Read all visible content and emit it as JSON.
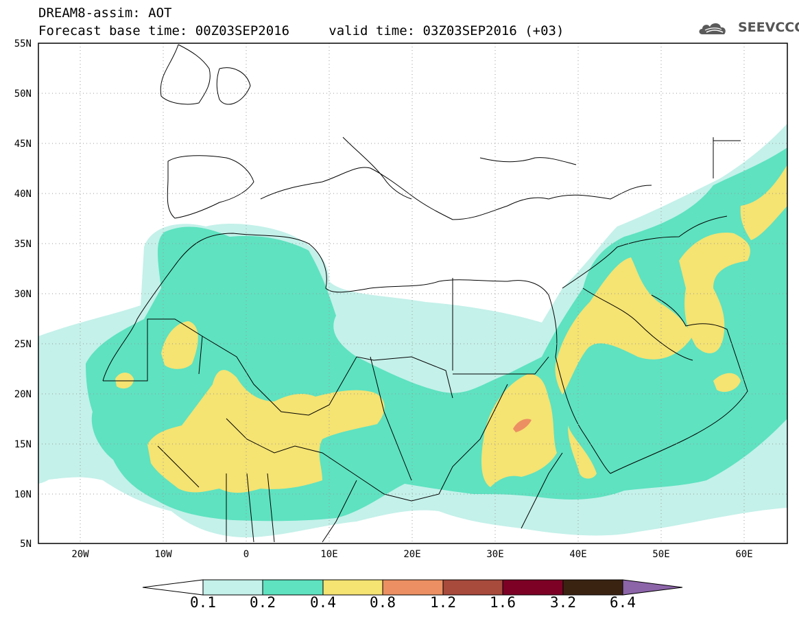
{
  "header": {
    "title": "DREAM8-assim: AOT",
    "base_time": "Forecast base time: 00Z03SEP2016",
    "valid_time": "valid time: 03Z03SEP2016 (+03)"
  },
  "brand": {
    "name": "SEEVCCC",
    "icon": "cloud-logo-icon"
  },
  "map": {
    "lon_range": [
      -25,
      65
    ],
    "lat_range": [
      5,
      55
    ],
    "lon_labels": [
      "20W",
      "10W",
      "0",
      "10E",
      "20E",
      "30E",
      "40E",
      "50E",
      "60E"
    ],
    "lat_labels": [
      "55N",
      "50N",
      "45N",
      "40N",
      "35N",
      "30N",
      "25N",
      "20N",
      "15N",
      "10N",
      "5N"
    ],
    "grid": true
  },
  "colorbar": {
    "levels": [
      "0.1",
      "0.2",
      "0.4",
      "0.8",
      "1.2",
      "1.6",
      "3.2",
      "6.4"
    ],
    "colors": [
      "#ffffff",
      "#c4f1ea",
      "#5ee2c0",
      "#f5e372",
      "#ec8f62",
      "#a84a3c",
      "#7d0025",
      "#3b2312",
      "#8c64a8"
    ]
  }
}
